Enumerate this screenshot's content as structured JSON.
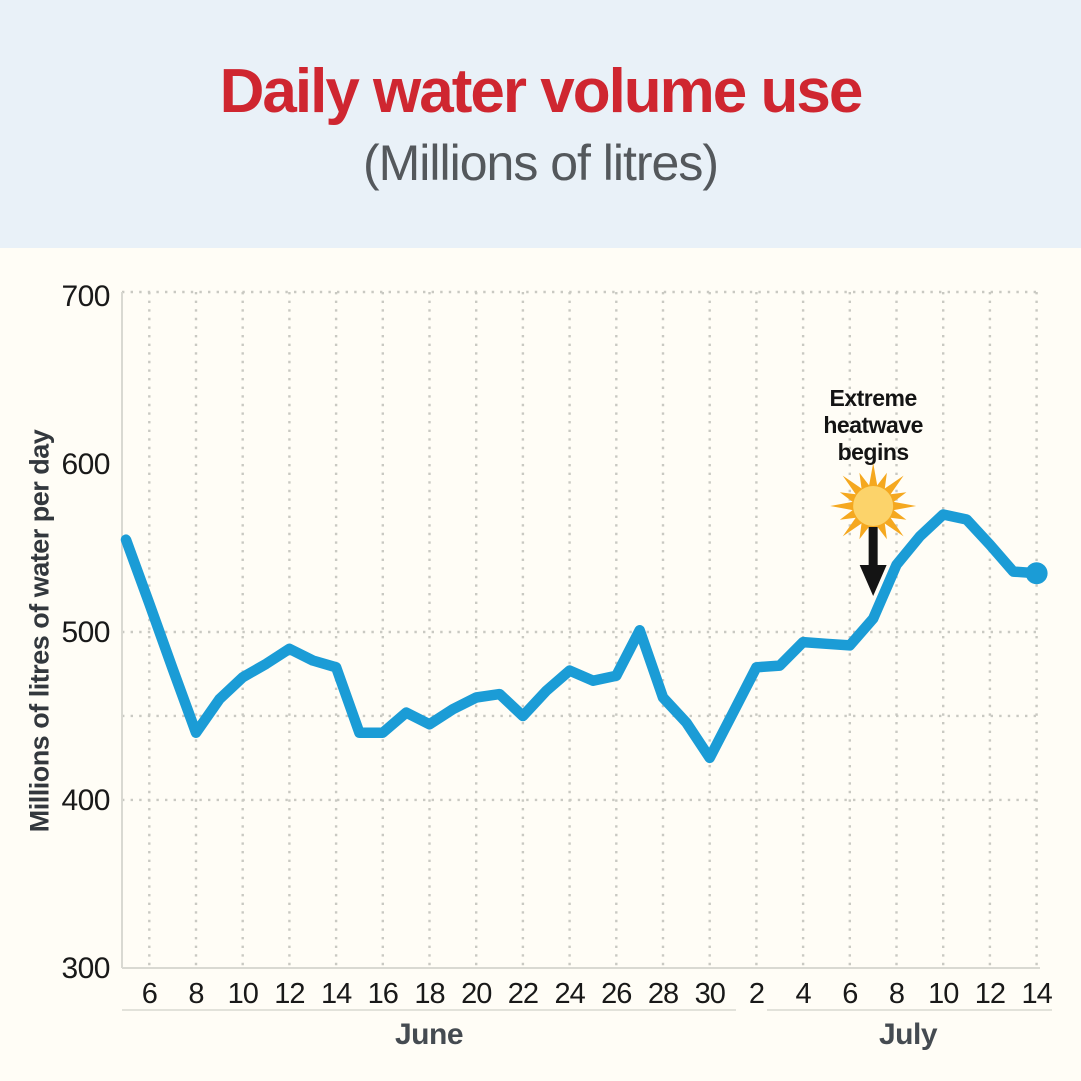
{
  "header": {
    "title": "Daily water volume use",
    "subtitle": "(Millions of litres)",
    "title_color": "#cf2630",
    "subtitle_color": "#54585c",
    "bg_color": "#e9f1f8"
  },
  "chart_data": {
    "type": "line",
    "ylabel": "Millions of litres of water per day",
    "ylim": [
      300,
      700
    ],
    "yticks": [
      700,
      600,
      500,
      400,
      300
    ],
    "ygridlines": [
      500,
      450,
      400
    ],
    "grid": "dotted",
    "legend": "none",
    "line_color": "#1b9cd6",
    "months": [
      {
        "label": "June",
        "days": [
          5,
          6,
          7,
          8,
          9,
          10,
          11,
          12,
          13,
          14,
          15,
          16,
          17,
          18,
          19,
          20,
          21,
          22,
          23,
          24,
          25,
          26,
          27,
          28,
          29,
          30
        ],
        "values": [
          555,
          517,
          478,
          440,
          460,
          473,
          481,
          490,
          483,
          479,
          440,
          440,
          452,
          445,
          454,
          461,
          463,
          450,
          465,
          477,
          471,
          474,
          501,
          461,
          446,
          425
        ]
      },
      {
        "label": "July",
        "days": [
          1,
          2,
          3,
          4,
          5,
          6,
          7,
          8,
          9,
          10,
          11,
          12,
          13,
          14
        ],
        "values": [
          452,
          479,
          480,
          494,
          493,
          492,
          508,
          540,
          557,
          570,
          567,
          552,
          536,
          535
        ]
      }
    ],
    "annotation": {
      "line1": "Extreme",
      "line2": "heatwave",
      "line3": "begins",
      "points_to_month": "July",
      "points_to_day": 7,
      "sun_ray_color": "#f5a81f",
      "sun_core_color": "#fcd36a",
      "arrow_color": "#141414"
    }
  }
}
